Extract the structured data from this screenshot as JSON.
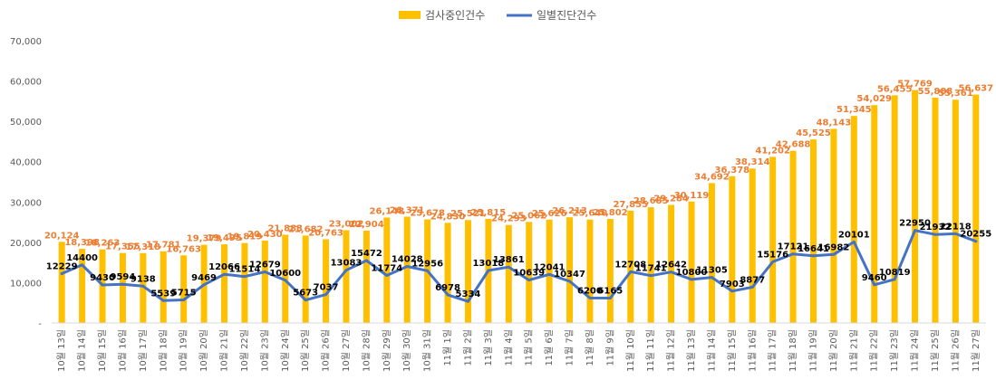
{
  "chart_data": {
    "type": "bar",
    "title": "",
    "xlabel": "",
    "ylabel": "",
    "ylim": [
      0,
      70000
    ],
    "yticks": [
      "-",
      "10,000",
      "20,000",
      "30,000",
      "40,000",
      "50,000",
      "60,000",
      "70,000"
    ],
    "grid": false,
    "legend_position": "top-center",
    "categories": [
      "10월 13일",
      "10월 14일",
      "10월 15일",
      "10월 16일",
      "10월 17일",
      "10월 18일",
      "10월 19일",
      "10월 20일",
      "10월 21일",
      "10월 22일",
      "10월 23일",
      "10월 24일",
      "10월 25일",
      "10월 26일",
      "10월 27일",
      "10월 28일",
      "10월 29일",
      "10월 30일",
      "10월 31일",
      "11월 1일",
      "11월 2일",
      "11월 3일",
      "11월 4일",
      "11월 5일",
      "11월 6일",
      "11월 7일",
      "11월 8일",
      "11월 9일",
      "11월 10일",
      "11월 11일",
      "11월 12일",
      "11월 13일",
      "11월 14일",
      "11월 15일",
      "11월 16일",
      "11월 17일",
      "11월 18일",
      "11월 19일",
      "11월 20일",
      "11월 21일",
      "11월 22일",
      "11월 23일",
      "11월 24일",
      "11월 25일",
      "11월 26일",
      "11월 27일"
    ],
    "series": [
      {
        "name": "검사중인건수",
        "kind": "bar",
        "color": "#FFC000",
        "label_color": "#ED7D31",
        "values": [
          20124,
          18398,
          18263,
          17355,
          17318,
          17781,
          16763,
          19379,
          19495,
          19819,
          20430,
          21883,
          21682,
          20763,
          23002,
          22904,
          26148,
          26371,
          25678,
          24830,
          25521,
          25815,
          24293,
          25062,
          25626,
          26213,
          25640,
          25802,
          27855,
          28685,
          29284,
          30119,
          34692,
          36378,
          38314,
          41202,
          42688,
          45525,
          48143,
          51345,
          54029,
          56455,
          57769,
          55888,
          55361,
          56637
        ],
        "labels": [
          "20,124",
          "18,398",
          "18,263",
          "17,355",
          "17,318",
          "17,781",
          "16,763",
          "19,379",
          "19,495",
          "19,819",
          "20,430",
          "21,883",
          "21,682",
          "20,763",
          "23,002",
          "22,904",
          "26,148",
          "26,371",
          "25,678",
          "24,830",
          "25,521",
          "25,815",
          "24,293",
          "25,062",
          "25,626",
          "26,213",
          "25,640",
          "25,802",
          "27,855",
          "28,685",
          "29,284",
          "30,119",
          "34,692",
          "36,378",
          "38,314",
          "41,202",
          "42,688",
          "45,525",
          "48,143",
          "51,345",
          "54,029",
          "56,455",
          "57,769",
          "55,888",
          "55,361",
          "56,637"
        ]
      },
      {
        "name": "일별진단건수",
        "kind": "line",
        "color": "#4472C4",
        "label_color": "#000000",
        "values": [
          12229,
          14400,
          9430,
          9594,
          9138,
          5539,
          5715,
          9469,
          12066,
          11514,
          12679,
          10600,
          5673,
          7037,
          13083,
          15472,
          11774,
          14028,
          12956,
          6978,
          5334,
          13018,
          13861,
          10639,
          12041,
          10347,
          6200,
          6165,
          12708,
          11741,
          12642,
          10800,
          11305,
          7903,
          8877,
          15176,
          17121,
          16641,
          16982,
          20101,
          9460,
          10819,
          22950,
          21932,
          22118,
          20255
        ],
        "labels": [
          "12229",
          "14400",
          "9430",
          "9594",
          "9138",
          "5539",
          "5715",
          "9469",
          "12066",
          "11514",
          "12679",
          "10600",
          "5673",
          "7037",
          "13083",
          "15472",
          "11774",
          "14028",
          "12956",
          "6978",
          "5334",
          "13018",
          "13861",
          "10639",
          "12041",
          "10347",
          "6200",
          "6165",
          "12708",
          "11741",
          "12642",
          "10800",
          "11305",
          "7903",
          "8877",
          "15176",
          "17121",
          "16641",
          "16982",
          "20101",
          "9460",
          "10819",
          "22950",
          "21932",
          "22118",
          "20255"
        ]
      }
    ]
  }
}
